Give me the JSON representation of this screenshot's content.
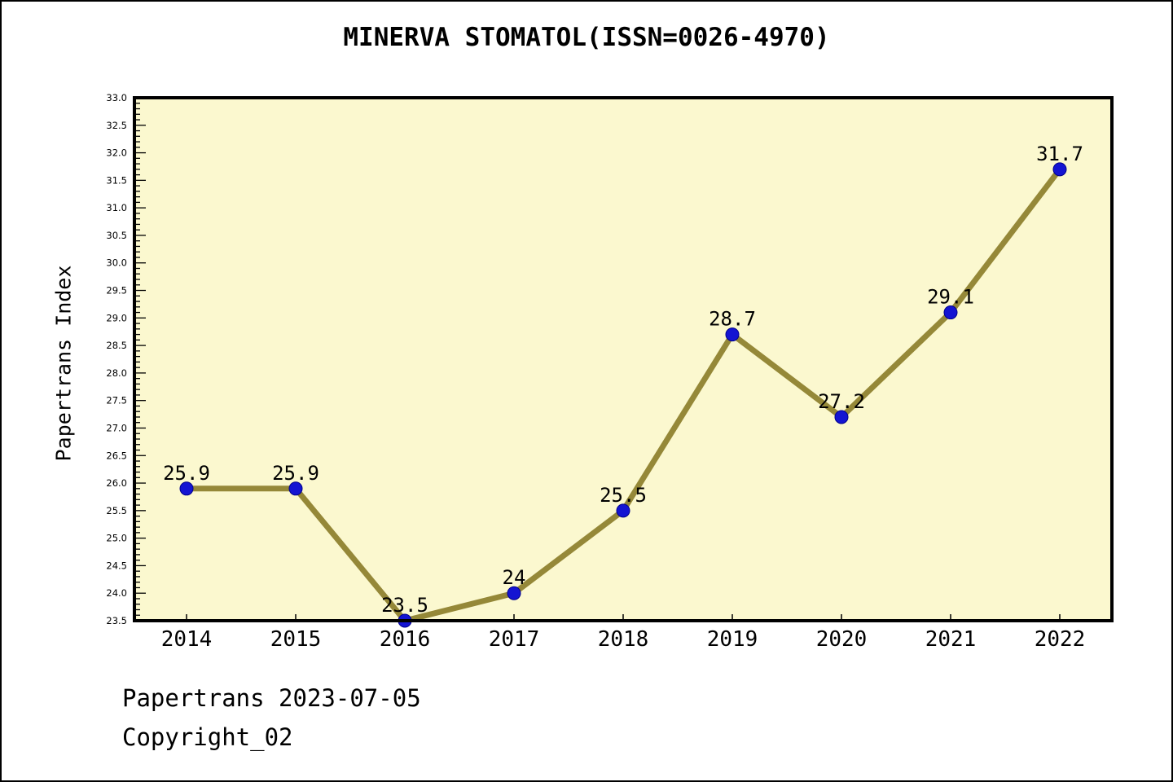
{
  "page": {
    "title": "MINERVA STOMATOL(ISSN=0026-4970)",
    "footer": {
      "line1": "Papertrans 2023-07-05",
      "line2": "Copyright_02"
    }
  },
  "chart_data": {
    "type": "line",
    "title": "MINERVA STOMATOL(ISSN=0026-4970)",
    "categories": [
      2014,
      2015,
      2016,
      2017,
      2018,
      2019,
      2020,
      2021,
      2022
    ],
    "series": [
      {
        "name": "Papertrans Index",
        "values": [
          25.9,
          25.9,
          23.5,
          24,
          25.5,
          28.7,
          27.2,
          29.1,
          31.7
        ]
      }
    ],
    "point_labels": [
      "25.9",
      "25.9",
      "23.5",
      "24",
      "25.5",
      "28.7",
      "27.2",
      "29.1",
      "31.7"
    ],
    "xlabel": "",
    "ylabel": "Papertrans Index",
    "ylim": [
      23.5,
      33.0
    ],
    "ytick_major_step": 0.5,
    "ytick_minor_step": 0.1,
    "grid": false,
    "legend": false,
    "colors": {
      "line": "#958838",
      "marker": "#1414D2",
      "marker_edge": "#00008B",
      "plot_background": "#FBF8CF",
      "axis": "#000000",
      "text": "#000000"
    }
  }
}
